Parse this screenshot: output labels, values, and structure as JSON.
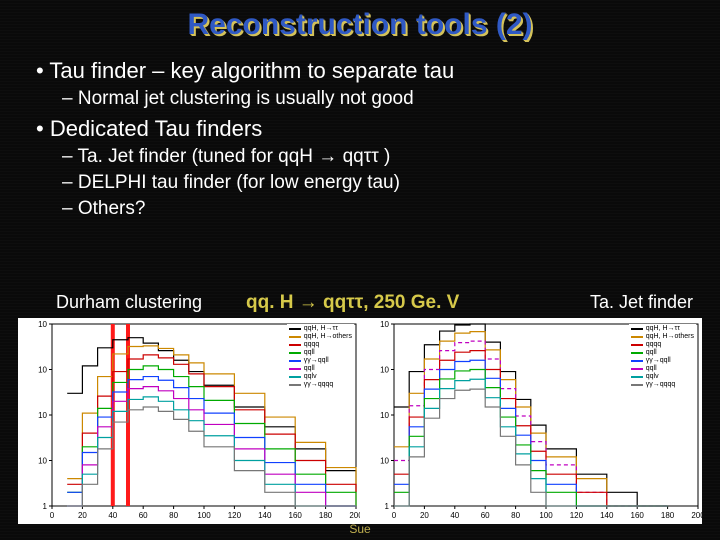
{
  "title": "Reconstruction tools (2)",
  "bullets": [
    {
      "level": 1,
      "text": "Tau finder – key algorithm to separate tau"
    },
    {
      "level": 2,
      "text": "Normal jet clustering is usually not good"
    },
    {
      "level": 1,
      "text": "Dedicated Tau finders"
    },
    {
      "level": 2,
      "text": "Ta. Jet finder (tuned for qqH → qqττ )"
    },
    {
      "level": 2,
      "text": "DELPHI tau finder (for low energy tau)"
    },
    {
      "level": 2,
      "text": "Others?"
    }
  ],
  "labels": {
    "durham": "Durham clustering",
    "center": "qq. H → qqττ, 250 Ge. V",
    "tajet": "Ta. Jet finder"
  },
  "footer_fragment": "Sue",
  "plots_common": {
    "background_color": "#ffffff",
    "xlim": [
      0,
      200
    ],
    "xtick_step": 20,
    "yscale": "log",
    "ylim_exp": [
      0,
      4
    ],
    "axis_color": "#000000",
    "grid_color": "none",
    "label_fontsize": 8
  },
  "legend_series": [
    {
      "label": "qqH, H→ττ",
      "color": "#000000"
    },
    {
      "label": "qqH, H→others",
      "color": "#cc8800"
    },
    {
      "label": "qqqq",
      "color": "#cc0000"
    },
    {
      "label": "qqll",
      "color": "#00aa00"
    },
    {
      "label": "γγ→qqll",
      "color": "#1040ff"
    },
    {
      "label": "qqll",
      "color": "#c000c0"
    },
    {
      "label": "qqlv",
      "color": "#00a0a0"
    },
    {
      "label": "γγ→qqqq",
      "color": "#777777"
    }
  ],
  "durham_plot": {
    "type": "histogram-step",
    "red_vlines_x": [
      40,
      50
    ],
    "vline_color": "#ff1a1a",
    "vline_width": 4,
    "series": [
      {
        "color": "#000000",
        "width": 1.2,
        "x": [
          10,
          20,
          30,
          40,
          50,
          60,
          70,
          80,
          90,
          100,
          120,
          140,
          160,
          180,
          200
        ],
        "y": [
          300,
          1200,
          3000,
          4500,
          5000,
          3800,
          2600,
          1600,
          900,
          450,
          150,
          55,
          18,
          6,
          2
        ]
      },
      {
        "color": "#cc8800",
        "width": 1.2,
        "x": [
          10,
          20,
          30,
          40,
          50,
          60,
          70,
          80,
          90,
          100,
          120,
          140,
          160,
          180,
          200
        ],
        "y": [
          4,
          110,
          700,
          2200,
          3200,
          3300,
          2900,
          2100,
          1400,
          800,
          300,
          90,
          25,
          7,
          2
        ]
      },
      {
        "color": "#cc0000",
        "width": 1.2,
        "x": [
          10,
          20,
          30,
          40,
          50,
          60,
          70,
          80,
          90,
          100,
          120,
          140,
          160,
          180,
          200
        ],
        "y": [
          3,
          40,
          260,
          900,
          1700,
          2100,
          1800,
          1300,
          800,
          420,
          130,
          38,
          10,
          3,
          1
        ]
      },
      {
        "color": "#00aa00",
        "width": 1.2,
        "x": [
          10,
          20,
          30,
          40,
          50,
          60,
          70,
          80,
          90,
          100,
          120,
          140,
          160,
          180,
          200
        ],
        "y": [
          2,
          20,
          140,
          520,
          1000,
          1200,
          1000,
          700,
          420,
          210,
          65,
          18,
          5,
          2,
          1
        ]
      },
      {
        "color": "#1040ff",
        "width": 1.2,
        "x": [
          10,
          20,
          30,
          40,
          50,
          60,
          70,
          80,
          90,
          100,
          120,
          140,
          160,
          180,
          200
        ],
        "y": [
          2,
          15,
          90,
          320,
          600,
          700,
          580,
          400,
          230,
          110,
          32,
          9,
          3,
          1,
          1
        ]
      },
      {
        "color": "#c000c0",
        "width": 1.2,
        "x": [
          10,
          20,
          30,
          40,
          50,
          60,
          70,
          80,
          90,
          100,
          120,
          140,
          160,
          180,
          200
        ],
        "y": [
          1,
          8,
          55,
          200,
          380,
          420,
          340,
          230,
          130,
          62,
          18,
          5,
          2,
          1,
          1
        ]
      },
      {
        "color": "#00a0a0",
        "width": 1.2,
        "x": [
          10,
          20,
          30,
          40,
          50,
          60,
          70,
          80,
          90,
          100,
          120,
          140,
          160,
          180,
          200
        ],
        "y": [
          1,
          5,
          32,
          120,
          220,
          250,
          200,
          130,
          75,
          35,
          10,
          3,
          1,
          1,
          1
        ]
      },
      {
        "color": "#777777",
        "width": 1.2,
        "x": [
          10,
          20,
          30,
          40,
          50,
          60,
          70,
          80,
          90,
          100,
          120,
          140,
          160,
          180,
          200
        ],
        "y": [
          1,
          3,
          18,
          70,
          130,
          150,
          120,
          80,
          44,
          20,
          6,
          2,
          1,
          1,
          1
        ]
      }
    ]
  },
  "tajet_plot": {
    "type": "histogram-step",
    "series": [
      {
        "color": "#000000",
        "width": 1.2,
        "x": [
          0,
          10,
          20,
          30,
          40,
          50,
          60,
          70,
          80,
          90,
          100,
          120,
          140,
          160,
          180
        ],
        "y": [
          150,
          900,
          3500,
          7000,
          9500,
          10000,
          4000,
          900,
          220,
          60,
          18,
          5,
          2,
          1,
          1
        ]
      },
      {
        "color": "#cc8800",
        "width": 1.2,
        "x": [
          0,
          10,
          20,
          30,
          40,
          50,
          60,
          70,
          80,
          90,
          100,
          120,
          140,
          160,
          180
        ],
        "y": [
          20,
          300,
          1700,
          4200,
          6300,
          6800,
          2700,
          600,
          150,
          40,
          12,
          4,
          1,
          1,
          1
        ]
      },
      {
        "color": "#c000c0",
        "width": 1.2,
        "dash": "4,3",
        "x": [
          0,
          10,
          20,
          30,
          40,
          50,
          60,
          70,
          80,
          90,
          100,
          120,
          140,
          160,
          180
        ],
        "y": [
          10,
          160,
          1000,
          2600,
          3900,
          4200,
          1700,
          380,
          95,
          26,
          8,
          2,
          1,
          1,
          1
        ]
      },
      {
        "color": "#cc0000",
        "width": 1.2,
        "x": [
          0,
          10,
          20,
          30,
          40,
          50,
          60,
          70,
          80,
          90,
          100,
          120,
          140,
          160,
          180
        ],
        "y": [
          5,
          90,
          600,
          1600,
          2400,
          2600,
          1000,
          230,
          58,
          16,
          5,
          2,
          1,
          1,
          1
        ]
      },
      {
        "color": "#1040ff",
        "width": 1.2,
        "x": [
          0,
          10,
          20,
          30,
          40,
          50,
          60,
          70,
          80,
          90,
          100,
          120,
          140,
          160,
          180
        ],
        "y": [
          3,
          55,
          370,
          1000,
          1500,
          1600,
          640,
          140,
          36,
          10,
          3,
          1,
          1,
          1,
          1
        ]
      },
      {
        "color": "#00aa00",
        "width": 1.2,
        "x": [
          0,
          10,
          20,
          30,
          40,
          50,
          60,
          70,
          80,
          90,
          100,
          120,
          140,
          160,
          180
        ],
        "y": [
          2,
          34,
          230,
          620,
          930,
          1000,
          400,
          90,
          22,
          6,
          2,
          1,
          1,
          1,
          1
        ]
      },
      {
        "color": "#00a0a0",
        "width": 1.2,
        "x": [
          0,
          10,
          20,
          30,
          40,
          50,
          60,
          70,
          80,
          90,
          100,
          120,
          140,
          160,
          180
        ],
        "y": [
          1,
          20,
          140,
          380,
          570,
          610,
          240,
          55,
          14,
          4,
          1,
          1,
          1,
          1,
          1
        ]
      },
      {
        "color": "#777777",
        "width": 1.2,
        "x": [
          0,
          10,
          20,
          30,
          40,
          50,
          60,
          70,
          80,
          90,
          100,
          120,
          140,
          160,
          180
        ],
        "y": [
          1,
          12,
          85,
          230,
          350,
          370,
          150,
          34,
          8,
          2,
          1,
          1,
          1,
          1,
          1
        ]
      }
    ]
  }
}
